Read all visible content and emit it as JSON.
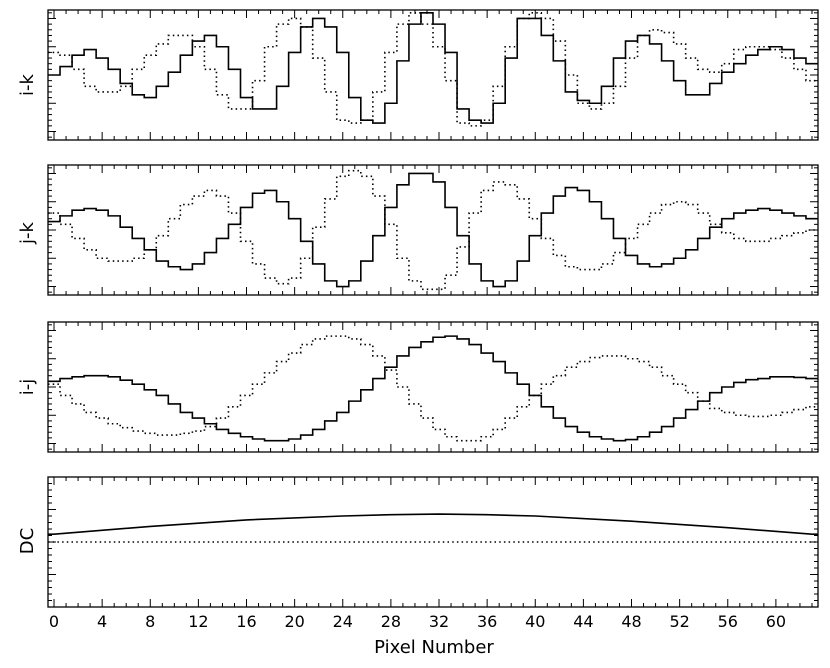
{
  "chart_data": [
    {
      "type": "line",
      "step": true,
      "ylabel": "i-k",
      "xlim": [
        -0.5,
        63.5
      ],
      "ylim": [
        -1.15,
        1.15
      ],
      "y_ticklabels_shown": false,
      "series": [
        {
          "style": "solid",
          "x": [
            0,
            1,
            2,
            3,
            4,
            5,
            6,
            7,
            8,
            9,
            10,
            11,
            12,
            13,
            14,
            15,
            16,
            17,
            18,
            19,
            20,
            21,
            22,
            23,
            24,
            25,
            26,
            27,
            28,
            29,
            30,
            31,
            32,
            33,
            34,
            35,
            36,
            37,
            38,
            39,
            40,
            41,
            42,
            43,
            44,
            45,
            46,
            47,
            48,
            49,
            50,
            51,
            52,
            53,
            54,
            55,
            56,
            57,
            58,
            59,
            60,
            61,
            62,
            63
          ],
          "y": [
            0.0,
            0.15,
            0.35,
            0.45,
            0.3,
            0.1,
            -0.15,
            -0.35,
            -0.4,
            -0.2,
            0.05,
            0.35,
            0.6,
            0.7,
            0.5,
            0.1,
            -0.4,
            -0.6,
            -0.6,
            -0.2,
            0.4,
            0.85,
            1.0,
            0.85,
            0.4,
            -0.4,
            -0.8,
            -0.85,
            -0.5,
            0.25,
            0.9,
            1.1,
            0.9,
            0.4,
            -0.6,
            -0.8,
            -0.85,
            -0.5,
            0.3,
            1.0,
            1.0,
            0.7,
            0.25,
            -0.3,
            -0.45,
            -0.5,
            -0.2,
            0.3,
            0.6,
            0.7,
            0.55,
            0.25,
            -0.1,
            -0.35,
            -0.35,
            -0.15,
            0.05,
            0.2,
            0.35,
            0.45,
            0.5,
            0.45,
            0.3,
            0.2
          ]
        },
        {
          "style": "dotted",
          "x": [
            0,
            1,
            2,
            3,
            4,
            5,
            6,
            7,
            8,
            9,
            10,
            11,
            12,
            13,
            14,
            15,
            16,
            17,
            18,
            19,
            20,
            21,
            22,
            23,
            24,
            25,
            26,
            27,
            28,
            29,
            30,
            31,
            32,
            33,
            34,
            35,
            36,
            37,
            38,
            39,
            40,
            41,
            42,
            43,
            44,
            45,
            46,
            47,
            48,
            49,
            50,
            51,
            52,
            53,
            54,
            55,
            56,
            57,
            58,
            59,
            60,
            61,
            62,
            63
          ],
          "y": [
            0.4,
            0.35,
            0.1,
            -0.2,
            -0.3,
            -0.3,
            -0.2,
            0.1,
            0.35,
            0.55,
            0.7,
            0.7,
            0.5,
            0.1,
            -0.35,
            -0.6,
            -0.6,
            -0.1,
            0.5,
            0.9,
            1.0,
            0.85,
            0.3,
            -0.3,
            -0.8,
            -0.85,
            -0.8,
            -0.3,
            0.4,
            0.9,
            1.1,
            0.9,
            0.5,
            -0.1,
            -0.85,
            -0.9,
            -0.8,
            -0.2,
            0.5,
            1.0,
            1.1,
            1.0,
            0.6,
            0.0,
            -0.5,
            -0.6,
            -0.5,
            -0.2,
            0.3,
            0.7,
            0.8,
            0.75,
            0.55,
            0.3,
            0.1,
            0.05,
            0.2,
            0.45,
            0.5,
            0.5,
            0.45,
            0.3,
            0.1,
            -0.1
          ]
        }
      ]
    },
    {
      "type": "line",
      "step": true,
      "ylabel": "j-k",
      "xlim": [
        -0.5,
        63.5
      ],
      "ylim": [
        -1.15,
        1.15
      ],
      "y_ticklabels_shown": false,
      "series": [
        {
          "style": "solid",
          "x": [
            0,
            1,
            2,
            3,
            4,
            5,
            6,
            7,
            8,
            9,
            10,
            11,
            12,
            13,
            14,
            15,
            16,
            17,
            18,
            19,
            20,
            21,
            22,
            23,
            24,
            25,
            26,
            27,
            28,
            29,
            30,
            31,
            32,
            33,
            34,
            35,
            36,
            37,
            38,
            39,
            40,
            41,
            42,
            43,
            44,
            45,
            46,
            47,
            48,
            49,
            50,
            51,
            52,
            53,
            54,
            55,
            56,
            57,
            58,
            59,
            60,
            61,
            62,
            63
          ],
          "y": [
            0.15,
            0.25,
            0.35,
            0.38,
            0.35,
            0.25,
            0.05,
            -0.15,
            -0.35,
            -0.55,
            -0.65,
            -0.7,
            -0.6,
            -0.4,
            -0.15,
            0.1,
            0.4,
            0.65,
            0.7,
            0.5,
            0.2,
            -0.2,
            -0.6,
            -0.9,
            -1.0,
            -0.9,
            -0.55,
            -0.1,
            0.4,
            0.8,
            1.0,
            1.0,
            0.85,
            0.4,
            -0.1,
            -0.6,
            -0.9,
            -1.0,
            -0.9,
            -0.55,
            -0.1,
            0.3,
            0.6,
            0.75,
            0.7,
            0.5,
            0.2,
            -0.15,
            -0.45,
            -0.6,
            -0.65,
            -0.6,
            -0.5,
            -0.35,
            -0.15,
            0.05,
            0.2,
            0.3,
            0.35,
            0.38,
            0.35,
            0.3,
            0.25,
            0.2
          ]
        },
        {
          "style": "dotted",
          "x": [
            0,
            1,
            2,
            3,
            4,
            5,
            6,
            7,
            8,
            9,
            10,
            11,
            12,
            13,
            14,
            15,
            16,
            17,
            18,
            19,
            20,
            21,
            22,
            23,
            24,
            25,
            26,
            27,
            28,
            29,
            30,
            31,
            32,
            33,
            34,
            35,
            36,
            37,
            38,
            39,
            40,
            41,
            42,
            43,
            44,
            45,
            46,
            47,
            48,
            49,
            50,
            51,
            52,
            53,
            54,
            55,
            56,
            57,
            58,
            59,
            60,
            61,
            62,
            63
          ],
          "y": [
            0.3,
            0.1,
            -0.15,
            -0.35,
            -0.5,
            -0.55,
            -0.55,
            -0.5,
            -0.35,
            -0.1,
            0.2,
            0.45,
            0.6,
            0.7,
            0.6,
            0.3,
            -0.2,
            -0.6,
            -0.85,
            -0.95,
            -0.85,
            -0.5,
            0.05,
            0.55,
            0.95,
            1.05,
            0.95,
            0.6,
            0.1,
            -0.5,
            -0.9,
            -1.05,
            -1.05,
            -0.8,
            -0.3,
            0.3,
            0.7,
            0.85,
            0.8,
            0.55,
            0.2,
            -0.15,
            -0.45,
            -0.65,
            -0.7,
            -0.7,
            -0.6,
            -0.4,
            -0.15,
            0.1,
            0.3,
            0.45,
            0.5,
            0.45,
            0.3,
            0.1,
            -0.05,
            -0.15,
            -0.2,
            -0.2,
            -0.15,
            -0.1,
            -0.05,
            0.0
          ]
        }
      ]
    },
    {
      "type": "line",
      "step": true,
      "ylabel": "i-j",
      "xlim": [
        -0.5,
        63.5
      ],
      "ylim": [
        -1.15,
        1.15
      ],
      "y_ticklabels_shown": false,
      "series": [
        {
          "style": "solid",
          "x": [
            0,
            1,
            2,
            3,
            4,
            5,
            6,
            7,
            8,
            9,
            10,
            11,
            12,
            13,
            14,
            15,
            16,
            17,
            18,
            19,
            20,
            21,
            22,
            23,
            24,
            25,
            26,
            27,
            28,
            29,
            30,
            31,
            32,
            33,
            34,
            35,
            36,
            37,
            38,
            39,
            40,
            41,
            42,
            43,
            44,
            45,
            46,
            47,
            48,
            49,
            50,
            51,
            52,
            53,
            54,
            55,
            56,
            57,
            58,
            59,
            60,
            61,
            62,
            63
          ],
          "y": [
            0.1,
            0.15,
            0.18,
            0.2,
            0.2,
            0.18,
            0.12,
            0.05,
            -0.05,
            -0.15,
            -0.3,
            -0.45,
            -0.55,
            -0.65,
            -0.75,
            -0.82,
            -0.88,
            -0.92,
            -0.95,
            -0.95,
            -0.92,
            -0.85,
            -0.75,
            -0.6,
            -0.45,
            -0.25,
            -0.05,
            0.15,
            0.35,
            0.55,
            0.7,
            0.8,
            0.88,
            0.9,
            0.85,
            0.75,
            0.6,
            0.45,
            0.25,
            0.05,
            -0.15,
            -0.35,
            -0.55,
            -0.7,
            -0.8,
            -0.88,
            -0.92,
            -0.95,
            -0.93,
            -0.88,
            -0.8,
            -0.7,
            -0.55,
            -0.4,
            -0.25,
            -0.1,
            0.0,
            0.08,
            0.13,
            0.15,
            0.18,
            0.18,
            0.17,
            0.15
          ]
        },
        {
          "style": "dotted",
          "x": [
            0,
            1,
            2,
            3,
            4,
            5,
            6,
            7,
            8,
            9,
            10,
            11,
            12,
            13,
            14,
            15,
            16,
            17,
            18,
            19,
            20,
            21,
            22,
            23,
            24,
            25,
            26,
            27,
            28,
            29,
            30,
            31,
            32,
            33,
            34,
            35,
            36,
            37,
            38,
            39,
            40,
            41,
            42,
            43,
            44,
            45,
            46,
            47,
            48,
            49,
            50,
            51,
            52,
            53,
            54,
            55,
            56,
            57,
            58,
            59,
            60,
            61,
            62,
            63
          ],
          "y": [
            0.05,
            -0.15,
            -0.3,
            -0.45,
            -0.55,
            -0.65,
            -0.72,
            -0.78,
            -0.82,
            -0.85,
            -0.85,
            -0.82,
            -0.78,
            -0.7,
            -0.55,
            -0.35,
            -0.15,
            0.05,
            0.25,
            0.45,
            0.6,
            0.75,
            0.85,
            0.9,
            0.9,
            0.85,
            0.75,
            0.55,
            0.3,
            0.0,
            -0.3,
            -0.55,
            -0.75,
            -0.88,
            -0.95,
            -0.95,
            -0.88,
            -0.75,
            -0.55,
            -0.35,
            -0.15,
            0.05,
            0.2,
            0.35,
            0.45,
            0.52,
            0.55,
            0.55,
            0.5,
            0.45,
            0.35,
            0.2,
            0.05,
            -0.1,
            -0.25,
            -0.38,
            -0.45,
            -0.5,
            -0.52,
            -0.52,
            -0.5,
            -0.45,
            -0.4,
            -0.35
          ]
        }
      ]
    },
    {
      "type": "line",
      "step": false,
      "ylabel": "DC",
      "xlim": [
        -0.5,
        63.5
      ],
      "ylim": [
        -1.0,
        1.0
      ],
      "y_ticklabels_shown": false,
      "series": [
        {
          "style": "solid",
          "x": [
            0,
            8,
            16,
            24,
            28,
            32,
            36,
            40,
            48,
            56,
            63
          ],
          "y": [
            0.12,
            0.24,
            0.34,
            0.4,
            0.42,
            0.43,
            0.42,
            0.4,
            0.32,
            0.22,
            0.12
          ]
        },
        {
          "style": "dotted",
          "x": [
            0,
            63
          ],
          "y": [
            0.0,
            0.0
          ]
        }
      ]
    }
  ],
  "x_axis": {
    "label": "Pixel Number",
    "ticks": [
      0,
      4,
      8,
      12,
      16,
      20,
      24,
      28,
      32,
      36,
      40,
      44,
      48,
      52,
      56,
      60
    ],
    "tick_labels": [
      "0",
      "4",
      "8",
      "12",
      "16",
      "20",
      "24",
      "28",
      "32",
      "36",
      "40",
      "44",
      "48",
      "52",
      "56",
      "60"
    ]
  }
}
